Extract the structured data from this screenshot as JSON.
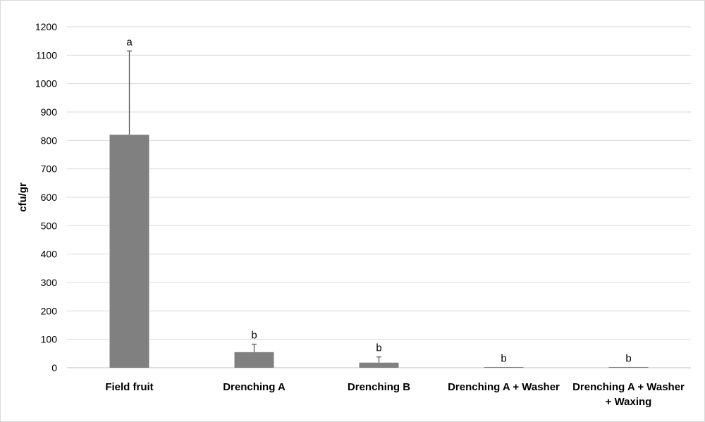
{
  "chart_data": {
    "type": "bar",
    "title": "",
    "xlabel": "",
    "ylabel": "cfu/gr",
    "ylim": [
      0,
      1200
    ],
    "yticks": [
      0,
      100,
      200,
      300,
      400,
      500,
      600,
      700,
      800,
      900,
      1000,
      1100,
      1200
    ],
    "grid": true,
    "legend": "none",
    "categories": [
      [
        "Field fruit"
      ],
      [
        "Drenching A"
      ],
      [
        "Drenching B"
      ],
      [
        "Drenching A + Washer"
      ],
      [
        "Drenching A + Washer",
        "+ Waxing"
      ]
    ],
    "values": [
      820,
      55,
      18,
      1,
      1
    ],
    "error_upper": [
      295,
      28,
      20,
      0,
      0
    ],
    "significance_letters": [
      "a",
      "b",
      "b",
      "b",
      "b"
    ],
    "colors": {
      "bar": "#808080",
      "grid": "#d9d9d9",
      "axis": "#bfbfbf",
      "error_bar": "#595959"
    }
  }
}
